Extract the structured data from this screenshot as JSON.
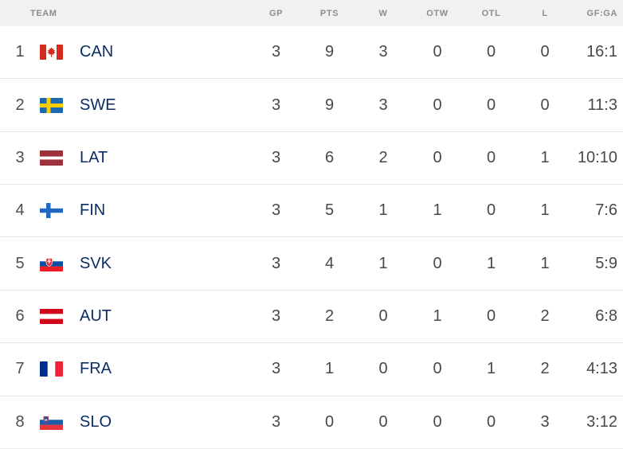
{
  "table": {
    "columns": [
      {
        "key": "team",
        "label": "TEAM"
      },
      {
        "key": "gp",
        "label": "GP"
      },
      {
        "key": "pts",
        "label": "PTS"
      },
      {
        "key": "w",
        "label": "W"
      },
      {
        "key": "otw",
        "label": "OTW"
      },
      {
        "key": "otl",
        "label": "OTL"
      },
      {
        "key": "l",
        "label": "L"
      },
      {
        "key": "gfga",
        "label": "GF:GA"
      }
    ],
    "rows": [
      {
        "rank": "1",
        "flag": "can",
        "team": "CAN",
        "gp": "3",
        "pts": "9",
        "w": "3",
        "otw": "0",
        "otl": "0",
        "l": "0",
        "gfga": "16:1"
      },
      {
        "rank": "2",
        "flag": "swe",
        "team": "SWE",
        "gp": "3",
        "pts": "9",
        "w": "3",
        "otw": "0",
        "otl": "0",
        "l": "0",
        "gfga": "11:3"
      },
      {
        "rank": "3",
        "flag": "lat",
        "team": "LAT",
        "gp": "3",
        "pts": "6",
        "w": "2",
        "otw": "0",
        "otl": "0",
        "l": "1",
        "gfga": "10:10"
      },
      {
        "rank": "4",
        "flag": "fin",
        "team": "FIN",
        "gp": "3",
        "pts": "5",
        "w": "1",
        "otw": "1",
        "otl": "0",
        "l": "1",
        "gfga": "7:6"
      },
      {
        "rank": "5",
        "flag": "svk",
        "team": "SVK",
        "gp": "3",
        "pts": "4",
        "w": "1",
        "otw": "0",
        "otl": "1",
        "l": "1",
        "gfga": "5:9"
      },
      {
        "rank": "6",
        "flag": "aut",
        "team": "AUT",
        "gp": "3",
        "pts": "2",
        "w": "0",
        "otw": "1",
        "otl": "0",
        "l": "2",
        "gfga": "6:8"
      },
      {
        "rank": "7",
        "flag": "fra",
        "team": "FRA",
        "gp": "3",
        "pts": "1",
        "w": "0",
        "otw": "0",
        "otl": "1",
        "l": "2",
        "gfga": "4:13"
      },
      {
        "rank": "8",
        "flag": "slo",
        "team": "SLO",
        "gp": "3",
        "pts": "0",
        "w": "0",
        "otw": "0",
        "otl": "0",
        "l": "3",
        "gfga": "3:12"
      }
    ]
  },
  "colors": {
    "header_bg": "#f1f1f2",
    "header_text": "#8b8d90",
    "team_text": "#0b2d64",
    "stat_text": "#45494e",
    "row_divider": "#e7e8e9"
  }
}
